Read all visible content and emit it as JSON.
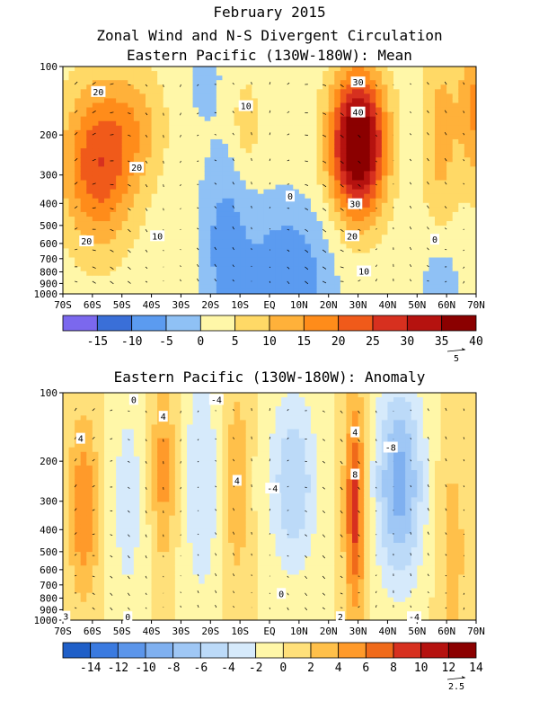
{
  "titles": {
    "main": "February 2015",
    "sub": "Zonal Wind and N-S Divergent Circulation",
    "panel1": "Eastern Pacific (130W-180W): Mean",
    "panel2": "Eastern Pacific (130W-180W): Anomaly"
  },
  "colors": {
    "land_bg": "#ffffff",
    "frame": "#000000"
  },
  "chart_data": [
    {
      "type": "heatmap",
      "title": "Eastern Pacific (130W-180W): Mean",
      "x_ticks": [
        "70S",
        "60S",
        "50S",
        "40S",
        "30S",
        "20S",
        "10S",
        "EQ",
        "10N",
        "20N",
        "30N",
        "40N",
        "50N",
        "60N",
        "70N"
      ],
      "y_ticks": [
        100,
        200,
        300,
        400,
        500,
        600,
        700,
        800,
        900,
        1000
      ],
      "y_scale": "log",
      "ylim": [
        1000,
        100
      ],
      "colorbar": {
        "labels": [
          "-15",
          "-10",
          "-5",
          "0",
          "5",
          "10",
          "15",
          "20",
          "25",
          "30",
          "35",
          "40"
        ],
        "colors": [
          "#7b68ee",
          "#3a6fd8",
          "#5b9bf0",
          "#8fc1f5",
          "#fff7a8",
          "#ffd966",
          "#ffb13a",
          "#ff8c1a",
          "#f05a1a",
          "#d7301f",
          "#b5120f",
          "#8b0000"
        ]
      },
      "vector_reference": "5",
      "contour_labels": [
        {
          "text": "20",
          "lat": -58,
          "p": 130
        },
        {
          "text": "20",
          "lat": -45,
          "p": 280
        },
        {
          "text": "20",
          "lat": -62,
          "p": 590
        },
        {
          "text": "10",
          "lat": -38,
          "p": 560
        },
        {
          "text": "10",
          "lat": -8,
          "p": 150
        },
        {
          "text": "0",
          "lat": 7,
          "p": 375
        },
        {
          "text": "30",
          "lat": 30,
          "p": 118
        },
        {
          "text": "40",
          "lat": 30,
          "p": 160
        },
        {
          "text": "30",
          "lat": 29,
          "p": 405
        },
        {
          "text": "20",
          "lat": 28,
          "p": 560
        },
        {
          "text": "10",
          "lat": 32,
          "p": 800
        },
        {
          "text": "0",
          "lat": 56,
          "p": 580
        }
      ]
    },
    {
      "type": "heatmap",
      "title": "Eastern Pacific (130W-180W): Anomaly",
      "x_ticks": [
        "70S",
        "60S",
        "50S",
        "40S",
        "30S",
        "20S",
        "10S",
        "EQ",
        "10N",
        "20N",
        "30N",
        "40N",
        "50N",
        "60N",
        "70N"
      ],
      "y_ticks": [
        100,
        200,
        300,
        400,
        500,
        600,
        700,
        800,
        900,
        1000
      ],
      "y_scale": "log",
      "ylim": [
        1000,
        100
      ],
      "colorbar": {
        "labels": [
          "-14",
          "-12",
          "-10",
          "-8",
          "-6",
          "-4",
          "-2",
          "0",
          "2",
          "4",
          "6",
          "8",
          "10",
          "12",
          "14"
        ],
        "colors": [
          "#1f5fc8",
          "#3a7ae0",
          "#5b95ea",
          "#7fb0f0",
          "#9fc7f5",
          "#bcdaf8",
          "#d6eafb",
          "#fff7a8",
          "#ffe07a",
          "#ffc04a",
          "#ff9a2a",
          "#f06a1a",
          "#d7301f",
          "#b5120f",
          "#8b0000"
        ]
      },
      "vector_reference": "2.5",
      "contour_labels": [
        {
          "text": "0",
          "lat": -46,
          "p": 108
        },
        {
          "text": "4",
          "lat": -64,
          "p": 160
        },
        {
          "text": "4",
          "lat": -36,
          "p": 128
        },
        {
          "text": "-4",
          "lat": -18,
          "p": 108
        },
        {
          "text": "4",
          "lat": -11,
          "p": 245
        },
        {
          "text": "-4",
          "lat": 1,
          "p": 265
        },
        {
          "text": "4",
          "lat": 29,
          "p": 150
        },
        {
          "text": "8",
          "lat": 29,
          "p": 230
        },
        {
          "text": "-8",
          "lat": 41,
          "p": 175
        },
        {
          "text": "3",
          "lat": -69,
          "p": 970
        },
        {
          "text": "0",
          "lat": -48,
          "p": 975
        },
        {
          "text": "-4",
          "lat": 49,
          "p": 975
        },
        {
          "text": "2",
          "lat": 24,
          "p": 975
        },
        {
          "text": "0",
          "lat": 4,
          "p": 770
        }
      ]
    }
  ]
}
